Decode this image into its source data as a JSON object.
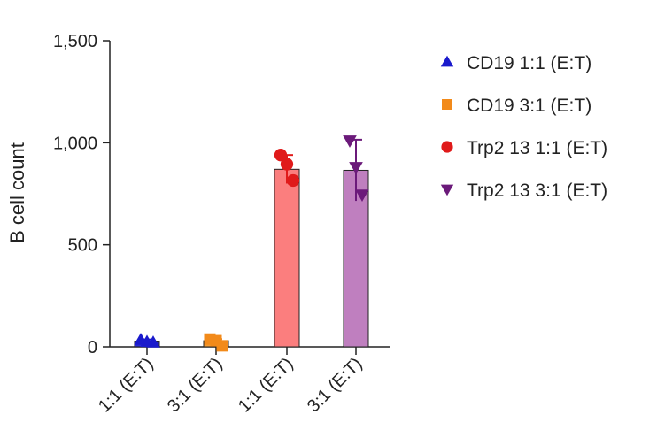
{
  "chart_data": {
    "type": "bar",
    "title": "",
    "xlabel": "",
    "ylabel": "B cell count",
    "ylim": [
      0,
      1500
    ],
    "yticks": [
      0,
      500,
      1000,
      1500
    ],
    "ytick_labels": [
      "0",
      "500",
      "1,000",
      "1,500"
    ],
    "grid": false,
    "legend_position": "right",
    "categories": [
      "1:1 (E:T)",
      "3:1 (E:T)",
      "1:1 (E:T)",
      "3:1 (E:T)"
    ],
    "series": [
      {
        "name": "CD19 1:1 (E:T)",
        "marker": "triangle-up",
        "color": "#1a1acc",
        "bar_fill": "#2a2ad6",
        "value": 28,
        "error": 8,
        "points": [
          35,
          25,
          22
        ]
      },
      {
        "name": "CD19 3:1 (E:T)",
        "marker": "square",
        "color": "#f28a1a",
        "bar_fill": "#f59a30",
        "value": 30,
        "error": 8,
        "points": [
          38,
          30,
          5
        ]
      },
      {
        "name": "Trp2 13 1:1 (E:T)",
        "marker": "circle",
        "color": "#e01a1a",
        "bar_fill": "#fb7e7e",
        "value": 870,
        "error": 70,
        "points": [
          940,
          895,
          815
        ]
      },
      {
        "name": "Trp2 13 3:1 (E:T)",
        "marker": "triangle-down",
        "color": "#6b1a7a",
        "bar_fill": "#bf7fbf",
        "value": 865,
        "error": 150,
        "points": [
          1010,
          880,
          745
        ]
      }
    ]
  }
}
